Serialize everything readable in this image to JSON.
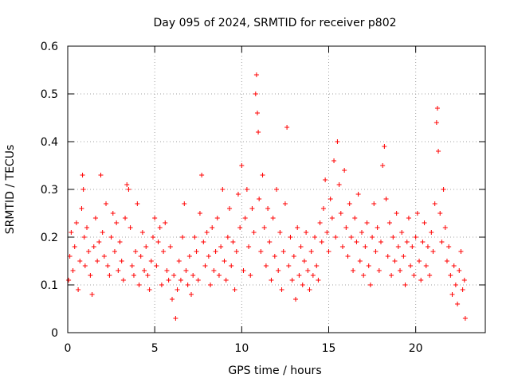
{
  "chart_data": {
    "type": "scatter",
    "title": "Day 095 of 2024, SRMTID for receiver p802",
    "xlabel": "GPS time / hours",
    "ylabel": "SRMTID / TECUs",
    "xlim": [
      0,
      24
    ],
    "ylim": [
      0,
      0.6
    ],
    "x_ticks": [
      0,
      5,
      10,
      15,
      20
    ],
    "x_tick_labels": [
      "0",
      "5",
      "10",
      "15",
      "20"
    ],
    "y_ticks": [
      0,
      0.1,
      0.2,
      0.3,
      0.4,
      0.5,
      0.6
    ],
    "y_tick_labels": [
      "0",
      "0.1",
      "0.2",
      "0.3",
      "0.4",
      "0.5",
      "0.6"
    ],
    "grid": true,
    "marker": "+",
    "marker_color": "#ff0000",
    "series": [
      {
        "name": "SRMTID",
        "points": [
          [
            0.05,
            0.11
          ],
          [
            0.12,
            0.16
          ],
          [
            0.2,
            0.21
          ],
          [
            0.3,
            0.13
          ],
          [
            0.4,
            0.18
          ],
          [
            0.5,
            0.23
          ],
          [
            0.6,
            0.09
          ],
          [
            0.7,
            0.15
          ],
          [
            0.8,
            0.26
          ],
          [
            0.85,
            0.33
          ],
          [
            0.9,
            0.3
          ],
          [
            0.95,
            0.2
          ],
          [
            1.0,
            0.14
          ],
          [
            1.1,
            0.22
          ],
          [
            1.2,
            0.17
          ],
          [
            1.3,
            0.12
          ],
          [
            1.4,
            0.08
          ],
          [
            1.5,
            0.18
          ],
          [
            1.6,
            0.24
          ],
          [
            1.7,
            0.15
          ],
          [
            1.8,
            0.19
          ],
          [
            1.9,
            0.33
          ],
          [
            2.0,
            0.21
          ],
          [
            2.1,
            0.16
          ],
          [
            2.2,
            0.27
          ],
          [
            2.3,
            0.14
          ],
          [
            2.4,
            0.12
          ],
          [
            2.5,
            0.2
          ],
          [
            2.6,
            0.25
          ],
          [
            2.7,
            0.17
          ],
          [
            2.8,
            0.23
          ],
          [
            2.9,
            0.13
          ],
          [
            3.0,
            0.19
          ],
          [
            3.1,
            0.15
          ],
          [
            3.2,
            0.11
          ],
          [
            3.3,
            0.24
          ],
          [
            3.4,
            0.31
          ],
          [
            3.5,
            0.3
          ],
          [
            3.6,
            0.22
          ],
          [
            3.7,
            0.14
          ],
          [
            3.8,
            0.12
          ],
          [
            3.9,
            0.17
          ],
          [
            4.0,
            0.27
          ],
          [
            4.1,
            0.1
          ],
          [
            4.2,
            0.16
          ],
          [
            4.3,
            0.21
          ],
          [
            4.4,
            0.13
          ],
          [
            4.5,
            0.18
          ],
          [
            4.6,
            0.12
          ],
          [
            4.7,
            0.09
          ],
          [
            4.8,
            0.15
          ],
          [
            4.9,
            0.2
          ],
          [
            5.0,
            0.24
          ],
          [
            5.1,
            0.14
          ],
          [
            5.2,
            0.19
          ],
          [
            5.3,
            0.22
          ],
          [
            5.4,
            0.1
          ],
          [
            5.5,
            0.17
          ],
          [
            5.6,
            0.23
          ],
          [
            5.7,
            0.13
          ],
          [
            5.8,
            0.11
          ],
          [
            5.9,
            0.18
          ],
          [
            6.0,
            0.07
          ],
          [
            6.1,
            0.12
          ],
          [
            6.2,
            0.03
          ],
          [
            6.3,
            0.09
          ],
          [
            6.4,
            0.15
          ],
          [
            6.5,
            0.11
          ],
          [
            6.6,
            0.2
          ],
          [
            6.7,
            0.27
          ],
          [
            6.8,
            0.13
          ],
          [
            6.9,
            0.1
          ],
          [
            7.0,
            0.16
          ],
          [
            7.1,
            0.08
          ],
          [
            7.2,
            0.12
          ],
          [
            7.3,
            0.2
          ],
          [
            7.4,
            0.17
          ],
          [
            7.5,
            0.11
          ],
          [
            7.6,
            0.25
          ],
          [
            7.7,
            0.33
          ],
          [
            7.8,
            0.19
          ],
          [
            7.9,
            0.14
          ],
          [
            8.0,
            0.21
          ],
          [
            8.1,
            0.16
          ],
          [
            8.2,
            0.1
          ],
          [
            8.3,
            0.22
          ],
          [
            8.4,
            0.13
          ],
          [
            8.5,
            0.17
          ],
          [
            8.6,
            0.24
          ],
          [
            8.7,
            0.12
          ],
          [
            8.8,
            0.18
          ],
          [
            8.9,
            0.3
          ],
          [
            9.0,
            0.15
          ],
          [
            9.1,
            0.11
          ],
          [
            9.2,
            0.2
          ],
          [
            9.3,
            0.26
          ],
          [
            9.4,
            0.14
          ],
          [
            9.5,
            0.19
          ],
          [
            9.6,
            0.09
          ],
          [
            9.7,
            0.17
          ],
          [
            9.8,
            0.29
          ],
          [
            9.9,
            0.22
          ],
          [
            10.0,
            0.35
          ],
          [
            10.1,
            0.13
          ],
          [
            10.2,
            0.24
          ],
          [
            10.3,
            0.3
          ],
          [
            10.4,
            0.18
          ],
          [
            10.5,
            0.12
          ],
          [
            10.6,
            0.26
          ],
          [
            10.7,
            0.21
          ],
          [
            10.8,
            0.5
          ],
          [
            10.85,
            0.54
          ],
          [
            10.9,
            0.46
          ],
          [
            10.95,
            0.42
          ],
          [
            11.0,
            0.28
          ],
          [
            11.1,
            0.17
          ],
          [
            11.2,
            0.33
          ],
          [
            11.3,
            0.22
          ],
          [
            11.4,
            0.14
          ],
          [
            11.5,
            0.26
          ],
          [
            11.6,
            0.19
          ],
          [
            11.7,
            0.11
          ],
          [
            11.8,
            0.24
          ],
          [
            11.9,
            0.16
          ],
          [
            12.0,
            0.3
          ],
          [
            12.1,
            0.13
          ],
          [
            12.2,
            0.21
          ],
          [
            12.3,
            0.09
          ],
          [
            12.4,
            0.17
          ],
          [
            12.5,
            0.27
          ],
          [
            12.6,
            0.43
          ],
          [
            12.7,
            0.14
          ],
          [
            12.8,
            0.2
          ],
          [
            12.9,
            0.11
          ],
          [
            13.0,
            0.16
          ],
          [
            13.1,
            0.07
          ],
          [
            13.2,
            0.22
          ],
          [
            13.3,
            0.12
          ],
          [
            13.4,
            0.18
          ],
          [
            13.5,
            0.1
          ],
          [
            13.6,
            0.15
          ],
          [
            13.7,
            0.21
          ],
          [
            13.8,
            0.13
          ],
          [
            13.9,
            0.09
          ],
          [
            14.0,
            0.17
          ],
          [
            14.1,
            0.12
          ],
          [
            14.2,
            0.2
          ],
          [
            14.3,
            0.14
          ],
          [
            14.4,
            0.11
          ],
          [
            14.5,
            0.23
          ],
          [
            14.6,
            0.19
          ],
          [
            14.7,
            0.26
          ],
          [
            14.8,
            0.32
          ],
          [
            14.9,
            0.21
          ],
          [
            15.0,
            0.17
          ],
          [
            15.1,
            0.28
          ],
          [
            15.2,
            0.24
          ],
          [
            15.3,
            0.36
          ],
          [
            15.4,
            0.2
          ],
          [
            15.5,
            0.4
          ],
          [
            15.6,
            0.31
          ],
          [
            15.7,
            0.25
          ],
          [
            15.8,
            0.18
          ],
          [
            15.9,
            0.34
          ],
          [
            16.0,
            0.22
          ],
          [
            16.1,
            0.16
          ],
          [
            16.2,
            0.27
          ],
          [
            16.3,
            0.2
          ],
          [
            16.4,
            0.13
          ],
          [
            16.5,
            0.24
          ],
          [
            16.6,
            0.19
          ],
          [
            16.7,
            0.29
          ],
          [
            16.8,
            0.15
          ],
          [
            16.9,
            0.21
          ],
          [
            17.0,
            0.12
          ],
          [
            17.1,
            0.18
          ],
          [
            17.2,
            0.23
          ],
          [
            17.3,
            0.14
          ],
          [
            17.4,
            0.1
          ],
          [
            17.5,
            0.2
          ],
          [
            17.6,
            0.27
          ],
          [
            17.7,
            0.17
          ],
          [
            17.8,
            0.22
          ],
          [
            17.9,
            0.13
          ],
          [
            18.0,
            0.19
          ],
          [
            18.1,
            0.35
          ],
          [
            18.2,
            0.39
          ],
          [
            18.3,
            0.28
          ],
          [
            18.4,
            0.16
          ],
          [
            18.5,
            0.23
          ],
          [
            18.6,
            0.12
          ],
          [
            18.7,
            0.2
          ],
          [
            18.8,
            0.15
          ],
          [
            18.9,
            0.25
          ],
          [
            19.0,
            0.18
          ],
          [
            19.1,
            0.13
          ],
          [
            19.2,
            0.21
          ],
          [
            19.3,
            0.16
          ],
          [
            19.4,
            0.1
          ],
          [
            19.5,
            0.19
          ],
          [
            19.6,
            0.24
          ],
          [
            19.7,
            0.14
          ],
          [
            19.8,
            0.18
          ],
          [
            19.9,
            0.12
          ],
          [
            20.0,
            0.2
          ],
          [
            20.1,
            0.25
          ],
          [
            20.2,
            0.15
          ],
          [
            20.3,
            0.11
          ],
          [
            20.4,
            0.19
          ],
          [
            20.5,
            0.23
          ],
          [
            20.6,
            0.14
          ],
          [
            20.7,
            0.18
          ],
          [
            20.8,
            0.12
          ],
          [
            20.9,
            0.21
          ],
          [
            21.0,
            0.17
          ],
          [
            21.1,
            0.27
          ],
          [
            21.2,
            0.44
          ],
          [
            21.25,
            0.47
          ],
          [
            21.3,
            0.38
          ],
          [
            21.4,
            0.25
          ],
          [
            21.5,
            0.19
          ],
          [
            21.6,
            0.3
          ],
          [
            21.7,
            0.22
          ],
          [
            21.8,
            0.15
          ],
          [
            21.9,
            0.18
          ],
          [
            22.0,
            0.12
          ],
          [
            22.1,
            0.08
          ],
          [
            22.2,
            0.14
          ],
          [
            22.3,
            0.1
          ],
          [
            22.4,
            0.06
          ],
          [
            22.5,
            0.13
          ],
          [
            22.6,
            0.17
          ],
          [
            22.7,
            0.09
          ],
          [
            22.8,
            0.11
          ],
          [
            22.85,
            0.03
          ]
        ]
      }
    ]
  }
}
